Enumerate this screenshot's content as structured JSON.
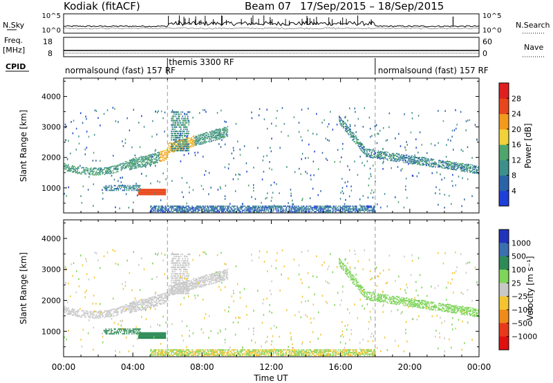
{
  "header": {
    "station": "Kodiak (fitACF)",
    "beam": "Beam 07",
    "dates": "17/Sep/2015 – 18/Sep/2015"
  },
  "summary": {
    "nsky_label": "N.Sky",
    "nsearch_label": "N.Search",
    "nsky_ticks": [
      "10^5",
      "10^0"
    ],
    "nsearch_ticks": [
      "10^5",
      "10^0"
    ],
    "freq_label_line1": "Freq.",
    "freq_label_line2": "[MHz]",
    "freq_ticks": [
      "18",
      "8"
    ],
    "nave_label": "Nave",
    "nave_ticks": [
      "60",
      "0"
    ],
    "cpid_label": "CPID",
    "cpid_segments": [
      {
        "label": "normalsound (fast) 157 RF",
        "start_h": 0,
        "end_h": 6
      },
      {
        "label": "themis 3300 RF",
        "start_h": 6,
        "end_h": 18
      },
      {
        "label": "normalsound (fast) 157 RF",
        "start_h": 18,
        "end_h": 24
      }
    ]
  },
  "power_panel": {
    "ylabel": "Slant Range [km]",
    "yticks": [
      "1000",
      "2000",
      "3000",
      "4000"
    ],
    "colorbar_label": "Power [dB]",
    "colorbar_ticks": [
      "4",
      "8",
      "12",
      "16",
      "20",
      "24",
      "28"
    ],
    "colors": [
      "#1f3fd9",
      "#2b63a8",
      "#3c8f8a",
      "#4fa56b",
      "#f1d23a",
      "#f39a1d",
      "#e8461b",
      "#e02020"
    ]
  },
  "velocity_panel": {
    "ylabel": "Slant Range [km]",
    "yticks": [
      "1000",
      "2000",
      "3000",
      "4000"
    ],
    "colorbar_label": "Velocity [m s⁻¹]",
    "colorbar_ticks": [
      "1000",
      "500",
      "100",
      "25",
      "−25",
      "−100",
      "−500",
      "−1000"
    ],
    "colors": [
      "#2233bb",
      "#3b6fb0",
      "#2e8b57",
      "#7fd45a",
      "#c8c8c8",
      "#f4c430",
      "#f08a1a",
      "#e83a1a",
      "#e01010"
    ]
  },
  "xaxis": {
    "label": "Time UT",
    "ticks": [
      "00:00",
      "04:00",
      "08:00",
      "12:00",
      "16:00",
      "20:00",
      "00:00"
    ]
  },
  "chart_data": {
    "type": "heatmap",
    "x_range_hours": [
      0,
      24
    ],
    "y_range_km": [
      180,
      4600
    ],
    "mode_changes_hours": [
      6,
      18
    ],
    "power_features": [
      {
        "name": "morning E/F echo band",
        "t_start_h": 0,
        "t_end_h": 4,
        "range_km": [
          1500,
          1800
        ],
        "power_db": 14
      },
      {
        "name": "rising F-region band",
        "t_start_h": 4,
        "t_end_h": 9.5,
        "range_km": [
          1700,
          2700
        ],
        "power_db": 16
      },
      {
        "name": "strong near-range patch",
        "t_start_h": 4.3,
        "t_end_h": 5.8,
        "range_km": [
          750,
          950
        ],
        "power_db": 28
      },
      {
        "name": "afternoon descending band",
        "t_start_h": 16,
        "t_end_h": 24,
        "range_km": [
          1300,
          3200
        ],
        "power_db": 12
      },
      {
        "name": "ground scatter floor",
        "t_start_h": 6,
        "t_end_h": 18,
        "range_km": [
          200,
          400
        ],
        "power_db": 8
      }
    ],
    "velocity_features": [
      {
        "name": "morning band",
        "velocity_m_s": 25
      },
      {
        "name": "near-range patch",
        "velocity_m_s": 100
      },
      {
        "name": "afternoon band",
        "velocity_m_s": 25
      },
      {
        "name": "ground scatter floor",
        "velocity_m_s": -25
      }
    ]
  }
}
